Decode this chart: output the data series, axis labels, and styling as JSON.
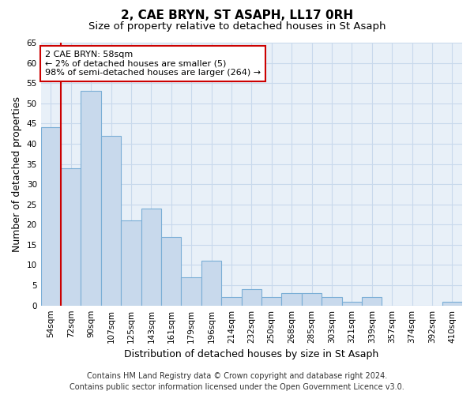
{
  "title": "2, CAE BRYN, ST ASAPH, LL17 0RH",
  "subtitle": "Size of property relative to detached houses in St Asaph",
  "xlabel": "Distribution of detached houses by size in St Asaph",
  "ylabel": "Number of detached properties",
  "categories": [
    "54sqm",
    "72sqm",
    "90sqm",
    "107sqm",
    "125sqm",
    "143sqm",
    "161sqm",
    "179sqm",
    "196sqm",
    "214sqm",
    "232sqm",
    "250sqm",
    "268sqm",
    "285sqm",
    "303sqm",
    "321sqm",
    "339sqm",
    "357sqm",
    "374sqm",
    "392sqm",
    "410sqm"
  ],
  "values": [
    44,
    34,
    53,
    42,
    21,
    24,
    17,
    7,
    11,
    2,
    4,
    2,
    3,
    3,
    2,
    1,
    2,
    0,
    0,
    0,
    1
  ],
  "bar_color": "#c8d9ec",
  "bar_edge_color": "#7aaed6",
  "property_line_x": 0.5,
  "annotation_title": "2 CAE BRYN: 58sqm",
  "annotation_line1": "← 2% of detached houses are smaller (5)",
  "annotation_line2": "98% of semi-detached houses are larger (264) →",
  "annotation_box_color": "#ffffff",
  "annotation_box_edge_color": "#cc0000",
  "ylim": [
    0,
    65
  ],
  "yticks": [
    0,
    5,
    10,
    15,
    20,
    25,
    30,
    35,
    40,
    45,
    50,
    55,
    60,
    65
  ],
  "grid_color": "#c8d9ec",
  "background_color": "#e8f0f8",
  "footer_line1": "Contains HM Land Registry data © Crown copyright and database right 2024.",
  "footer_line2": "Contains public sector information licensed under the Open Government Licence v3.0.",
  "title_fontsize": 11,
  "subtitle_fontsize": 9.5,
  "axis_label_fontsize": 9,
  "tick_fontsize": 7.5,
  "footer_fontsize": 7,
  "annotation_fontsize": 8
}
